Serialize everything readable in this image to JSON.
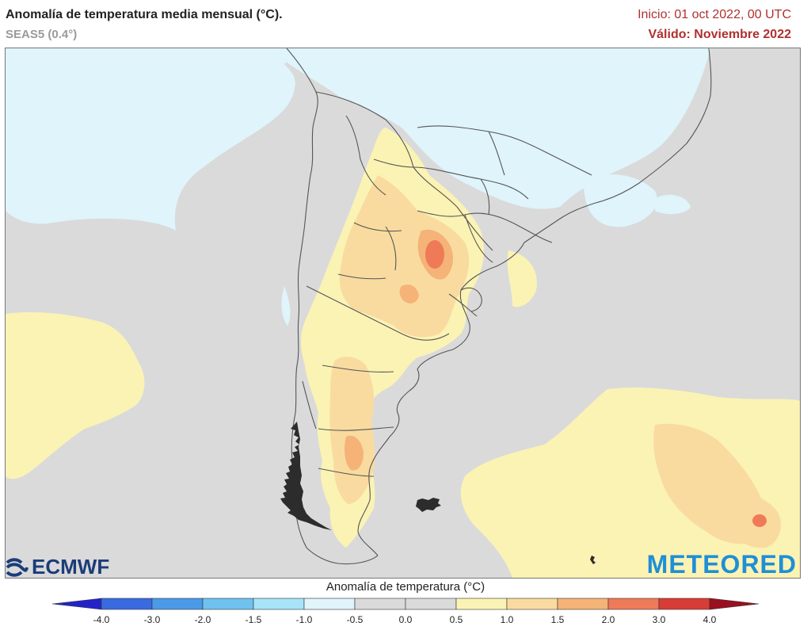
{
  "header": {
    "title": "Anomalía de temperatura media mensual (°C).",
    "subtitle": "SEAS5 (0.4°)",
    "init": "Inicio: 01 oct 2022, 00 UTC",
    "valid": "Válido: Noviembre 2022"
  },
  "logos": {
    "left": "ECMWF",
    "right": "METEORED"
  },
  "colorbar": {
    "title": "Anomalía de temperatura (°C)",
    "ticks": [
      "-4.0",
      "-3.0",
      "-2.0",
      "-1.5",
      "-1.0",
      "-0.5",
      "0.0",
      "0.5",
      "1.0",
      "1.5",
      "2.0",
      "3.0",
      "4.0"
    ],
    "colors": [
      "#2a2ad8",
      "#3a6ae0",
      "#4a9ae8",
      "#6fc2f0",
      "#a8e4f8",
      "#dff4fb",
      "#dadada",
      "#dadada",
      "#fbf3b4",
      "#f9dba0",
      "#f5b378",
      "#ef7a58",
      "#d83c36",
      "#b01f2a"
    ],
    "under_color": "#2323c8",
    "over_color": "#9a1020"
  },
  "map": {
    "region": "Sudamérica austral",
    "neutral_color": "#dadada",
    "cool_color": "#dff4fb",
    "warm_colors": [
      "#fbf3b4",
      "#f9dba0",
      "#f5b378",
      "#ef7a58"
    ],
    "land_outline_color": "#555555"
  }
}
